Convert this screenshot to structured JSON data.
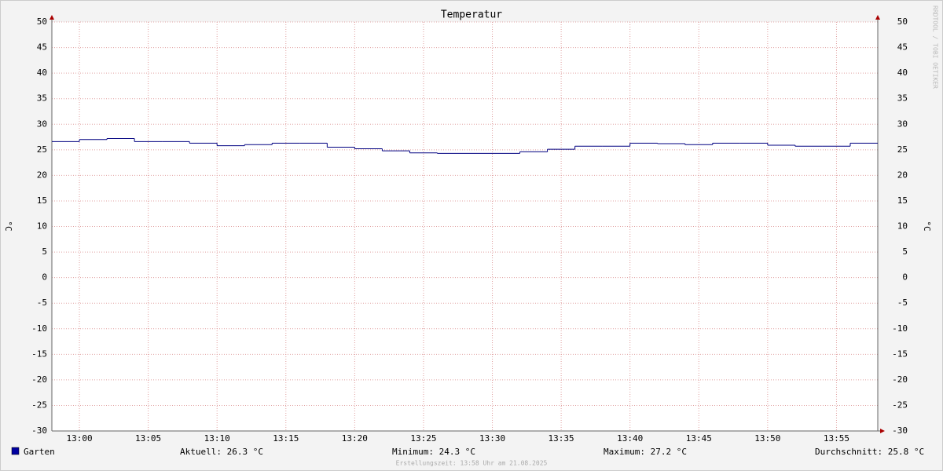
{
  "chart_data": {
    "type": "line",
    "title": "Temperatur",
    "y_label": "°C",
    "x": [
      "12:58",
      "13:00",
      "13:02",
      "13:04",
      "13:06",
      "13:08",
      "13:10",
      "13:12",
      "13:14",
      "13:16",
      "13:18",
      "13:20",
      "13:22",
      "13:24",
      "13:26",
      "13:28",
      "13:30",
      "13:32",
      "13:34",
      "13:36",
      "13:38",
      "13:40",
      "13:42",
      "13:44",
      "13:46",
      "13:48",
      "13:50",
      "13:52",
      "13:54",
      "13:56"
    ],
    "series": [
      {
        "name": "Garten",
        "color": "#000080",
        "legend_color": "#0000a0",
        "values": [
          26.6,
          27.0,
          27.2,
          26.6,
          26.6,
          26.3,
          25.8,
          26.0,
          26.3,
          26.3,
          25.5,
          25.2,
          24.8,
          24.4,
          24.3,
          24.3,
          24.3,
          24.6,
          25.1,
          25.7,
          25.7,
          26.3,
          26.2,
          26.0,
          26.3,
          26.3,
          25.9,
          25.7,
          25.7,
          26.3
        ]
      }
    ],
    "xlim": [
      "12:58",
      "13:58"
    ],
    "xticks": [
      "13:00",
      "13:05",
      "13:10",
      "13:15",
      "13:20",
      "13:25",
      "13:30",
      "13:35",
      "13:40",
      "13:45",
      "13:50",
      "13:55"
    ],
    "ylim": [
      -30,
      50
    ],
    "yticks": [
      -30,
      -25,
      -20,
      -15,
      -10,
      -5,
      0,
      5,
      10,
      15,
      20,
      25,
      30,
      35,
      40,
      45,
      50
    ],
    "grid": true,
    "stats": [
      "Aktuell: 26.3 °C",
      "Minimum: 24.3 °C",
      "Maximum: 27.2 °C",
      "Durchschnitt: 25.8 °C"
    ],
    "footer": "Erstellungszeit: 13:58 Uhr am 21.08.2025",
    "watermark": "RRDTOOL / TOBI OETIKER"
  }
}
